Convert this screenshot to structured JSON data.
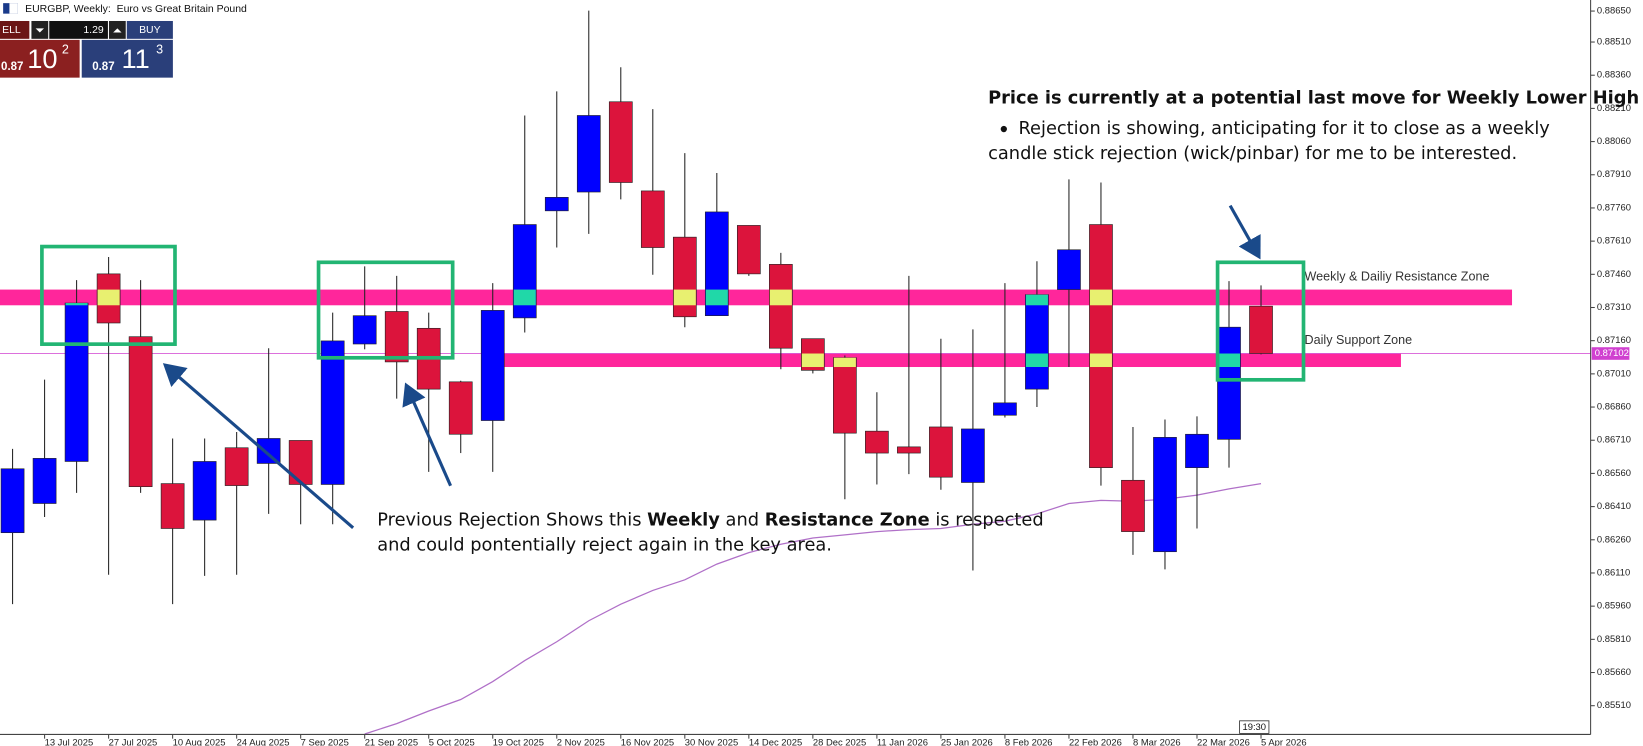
{
  "header": {
    "symbol_line": "EURGBP, Weekly:  Euro vs Great Britain Pound"
  },
  "trade_panel": {
    "sell": "ELL",
    "lot": "1.29",
    "buy": "BUY",
    "sell_prefix": "0.87",
    "sell_big": "10",
    "sell_sup": "2",
    "buy_prefix": "0.87",
    "buy_big": "11",
    "buy_sup": "3"
  },
  "time_label": "19:30",
  "chart_data": {
    "type": "candlestick",
    "categories": [
      null,
      "13 Jul 2025",
      null,
      "27 Jul 2025",
      null,
      "10 Aug 2025",
      null,
      "24 Aug 2025",
      null,
      "7 Sep 2025",
      null,
      "21 Sep 2025",
      null,
      "5 Oct 2025",
      null,
      "19 Oct 2025",
      null,
      "2 Nov 2025",
      null,
      "16 Nov 2025",
      null,
      "30 Nov 2025",
      null,
      "14 Dec 2025",
      null,
      "28 Dec 2025",
      null,
      "11 Jan 2026",
      null,
      "25 Jan 2026",
      null,
      "8 Feb 2026",
      null,
      "22 Feb 2026",
      null,
      "8 Mar 2026",
      null,
      "22 Mar 2026",
      null,
      "5 Apr 2026"
    ],
    "open": [
      0.86292,
      0.86424,
      0.86614,
      0.87462,
      0.87178,
      0.86514,
      0.86349,
      0.86676,
      0.86605,
      0.86709,
      0.8651,
      0.87145,
      0.87292,
      0.87216,
      0.86974,
      0.86799,
      0.87263,
      0.87747,
      0.87832,
      0.8824,
      0.87837,
      0.87628,
      0.87273,
      0.87681,
      0.87505,
      0.87169,
      0.87083,
      0.86751,
      0.8668,
      0.8677,
      0.86519,
      0.86823,
      0.86941,
      0.87391,
      0.87685,
      0.86529,
      0.86206,
      0.86586,
      0.86714,
      0.87316
    ],
    "high": [
      0.86671,
      0.86984,
      0.87434,
      0.87538,
      0.87434,
      0.86718,
      0.86718,
      0.86747,
      0.87126,
      0.86709,
      0.87287,
      0.87496,
      0.87453,
      0.87287,
      0.86979,
      0.8742,
      0.88178,
      0.88287,
      0.88652,
      0.88396,
      0.88207,
      0.88008,
      0.87918,
      0.87681,
      0.87557,
      0.87169,
      0.87093,
      0.86927,
      0.87453,
      0.87169,
      0.87211,
      0.8742,
      0.87519,
      0.87889,
      0.87875,
      0.8677,
      0.86804,
      0.86818,
      0.87429,
      0.8741
    ],
    "low": [
      0.85969,
      0.86363,
      0.86472,
      0.86102,
      0.86472,
      0.85969,
      0.86097,
      0.86102,
      0.86377,
      0.8633,
      0.8633,
      0.87121,
      0.86898,
      0.86567,
      0.86652,
      0.86567,
      0.87197,
      0.87581,
      0.87643,
      0.87799,
      0.87458,
      0.87221,
      0.87273,
      0.87453,
      0.87031,
      0.87012,
      0.86443,
      0.8651,
      0.86557,
      0.86486,
      0.86121,
      0.86813,
      0.8686,
      0.87041,
      0.86505,
      0.86192,
      0.86126,
      0.86311,
      0.86586,
      0.87098
    ],
    "close": [
      0.86581,
      0.86628,
      0.8733,
      0.8724,
      0.865,
      0.86311,
      0.86614,
      0.86505,
      0.86718,
      0.8651,
      0.87159,
      0.87273,
      0.87064,
      0.86941,
      0.86737,
      0.87297,
      0.87685,
      0.87808,
      0.88178,
      0.87875,
      0.87581,
      0.87268,
      0.87742,
      0.87462,
      0.87126,
      0.87026,
      0.86742,
      0.86652,
      0.86652,
      0.86543,
      0.86761,
      0.86879,
      0.87368,
      0.87571,
      0.86586,
      0.86297,
      0.86723,
      0.86737,
      0.87221,
      0.87102
    ],
    "up_color": "#0000ff",
    "down_color": "#dc143c",
    "overlays": [
      {
        "color": "#b070c8",
        "values": [
          null,
          null,
          null,
          null,
          null,
          null,
          null,
          null,
          null,
          null,
          null,
          0.85382,
          0.85429,
          0.85486,
          0.85538,
          0.85619,
          0.85714,
          0.85799,
          0.85894,
          0.85969,
          0.86031,
          0.86079,
          0.8615,
          0.86202,
          0.8624,
          0.86268,
          0.86282,
          0.86297,
          0.86306,
          0.86311,
          0.8633,
          0.86344,
          0.86377,
          0.86424,
          0.86438,
          0.86434,
          0.86443,
          0.86462,
          0.8649,
          0.86514
        ]
      }
    ],
    "zones": [
      {
        "label": "Weekly & Dailiy Resistance Zone",
        "low": 0.8732,
        "high": 0.87391,
        "color": "#ff1493"
      },
      {
        "label": "Daily Support Zone",
        "low": 0.87041,
        "high": 0.87102,
        "color": "#ff1493"
      }
    ],
    "current_price": 0.87102,
    "ylim": [
      0.8538,
      0.887
    ],
    "yticks": [
      {
        "value": 0.8865,
        "label": "0.88650"
      },
      {
        "value": 0.8851,
        "label": "0.88510"
      },
      {
        "value": 0.8836,
        "label": "0.88360"
      },
      {
        "value": 0.8821,
        "label": "0.88210"
      },
      {
        "value": 0.8806,
        "label": "0.88060"
      },
      {
        "value": 0.8791,
        "label": "0.87910"
      },
      {
        "value": 0.8776,
        "label": "0.87760"
      },
      {
        "value": 0.8761,
        "label": "0.87610"
      },
      {
        "value": 0.8746,
        "label": "0.87460"
      },
      {
        "value": 0.8731,
        "label": "0.87310"
      },
      {
        "value": 0.8716,
        "label": "0.87160"
      },
      {
        "value": 0.8701,
        "label": "0.87010"
      },
      {
        "value": 0.8686,
        "label": "0.86860"
      },
      {
        "value": 0.8671,
        "label": "0.86710"
      },
      {
        "value": 0.8656,
        "label": "0.86560"
      },
      {
        "value": 0.8641,
        "label": "0.86410"
      },
      {
        "value": 0.8626,
        "label": "0.86260"
      },
      {
        "value": 0.8611,
        "label": "0.86110"
      },
      {
        "value": 0.8596,
        "label": "0.85960"
      },
      {
        "value": 0.8581,
        "label": "0.85810"
      },
      {
        "value": 0.8566,
        "label": "0.85660"
      },
      {
        "value": 0.8551,
        "label": "0.85510"
      }
    ],
    "annotations": {
      "upper": {
        "title": "Price is currently at a potential last move for Weekly Lower High",
        "bullet": [
          "Rejection is showing, anticipating for it to close as a weekly",
          "candle stick rejection (wick/pinbar) for me to be interested."
        ]
      },
      "lower": {
        "lines": [
          [
            {
              "text": "Previous Rejection Shows this ",
              "bold": false
            },
            {
              "text": "Weekly",
              "bold": true
            },
            {
              "text": " and ",
              "bold": false
            },
            {
              "text": "Resistance Zone",
              "bold": true
            },
            {
              "text": " is respected",
              "bold": false
            }
          ],
          [
            {
              "text": "and could pontentially reject again in the key area.",
              "bold": false
            }
          ]
        ]
      }
    }
  }
}
